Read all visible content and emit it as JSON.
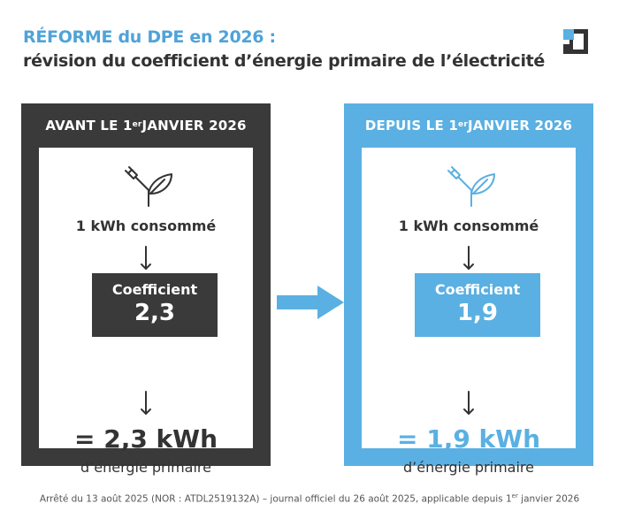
{
  "title": {
    "line1": "RÉFORME du DPE en 2026 :",
    "line2": "révision du coefficient d’énergie primaire de l’électricité"
  },
  "logo_icon": "brand-logo",
  "colors": {
    "accent": "#5ab0e2",
    "dark": "#3a3a3a",
    "text": "#333333"
  },
  "before": {
    "header_pre": "AVANT LE 1",
    "header_sup": "er",
    "header_post": " JANVIER 2026",
    "icon": "plug-leaf-icon",
    "consumed": "1 kWh consommé",
    "coef_label": "Coefficient",
    "coef_value": "2,3",
    "result": "= 2,3 kWh",
    "result_sub": "d’énergie primaire"
  },
  "after": {
    "header_pre": "DEPUIS LE 1",
    "header_sup": "er",
    "header_post": " JANVIER 2026",
    "icon": "plug-leaf-icon",
    "consumed": "1 kWh consommé",
    "coef_label": "Coefficient",
    "coef_value": "1,9",
    "result": "= 1,9 kWh",
    "result_sub": "d’énergie primaire"
  },
  "footer": {
    "pre": "Arrêté du 13 août 2025 (NOR : ATDL2519132A) – journal officiel du 26 août 2025, applicable depuis 1",
    "sup": "er",
    "post": " janvier 2026"
  }
}
